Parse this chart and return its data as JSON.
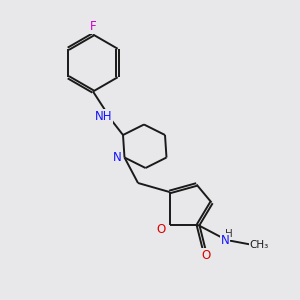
{
  "background_color": "#e8e8eb",
  "bond_color": "#1a1a1a",
  "N_color": "#1414ff",
  "O_color": "#dd0000",
  "F_color": "#cc00cc",
  "bond_width": 1.4,
  "figsize": [
    3.0,
    3.0
  ],
  "dpi": 100,
  "xlim": [
    0,
    10
  ],
  "ylim": [
    0,
    10
  ]
}
